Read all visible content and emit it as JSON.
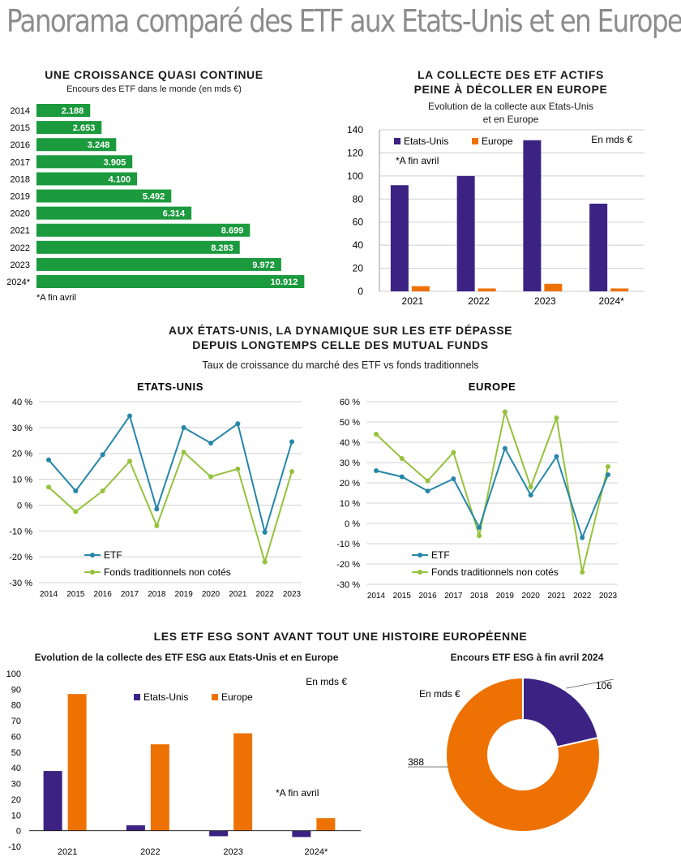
{
  "title": "Panorama comparé des ETF aux Etats-Unis et en Europe",
  "colors": {
    "green": "#1c9a3e",
    "purple": "#3b2283",
    "orange": "#ee7203",
    "teal": "#2586a8",
    "lime": "#96c23c",
    "grey": "#8c8c8c"
  },
  "panel1": {
    "title": "UNE CROISSANCE QUASI CONTINUE",
    "subtitle": "Encours des ETF dans le monde (en mds €)",
    "note": "*A fin avril"
  },
  "panel2": {
    "title_line1": "LA COLLECTE DES ETF ACTIFS",
    "title_line2": "PEINE À DÉCOLLER EN EUROPE",
    "subtitle_line1": "Evolution de la collecte aux Etats-Unis",
    "subtitle_line2": "et en Europe",
    "unit": "En mds €",
    "note": "*A fin avril"
  },
  "section3": {
    "title_line1": "AUX ÉTATS-UNIS, LA DYNAMIQUE SUR LES ETF DÉPASSE",
    "title_line2": "DEPUIS LONGTEMPS CELLE DES MUTUAL FUNDS",
    "subtitle": "Taux de croissance du marché des ETF vs fonds traditionnels"
  },
  "section4": {
    "title": "LES ETF ESG SONT AVANT TOUT UNE HISTOIRE EUROPÉENNE",
    "left_subtitle": "Evolution de la collecte des ETF ESG aux Etats-Unis et en Europe",
    "right_subtitle": "Encours ETF ESG à fin avril 2024",
    "unit": "En mds €",
    "note": "*A fin avril"
  },
  "chart_data": [
    {
      "type": "bar",
      "orientation": "horizontal",
      "categories": [
        "2014",
        "2015",
        "2016",
        "2017",
        "2018",
        "2019",
        "2020",
        "2021",
        "2022",
        "2023",
        "2024*"
      ],
      "values": [
        2188,
        2653,
        3248,
        3905,
        4100,
        5492,
        6314,
        8699,
        8283,
        9972,
        10912
      ],
      "labels": [
        "2.188",
        "2.653",
        "3.248",
        "3.905",
        "4.100",
        "5.492",
        "6.314",
        "8.699",
        "8.283",
        "9.972",
        "10.912"
      ],
      "xlim": [
        0,
        11000
      ],
      "color": "#1c9a3e"
    },
    {
      "type": "bar",
      "categories": [
        "2021",
        "2022",
        "2023",
        "2024*"
      ],
      "series": [
        {
          "name": "Etats-Unis",
          "values": [
            92,
            100,
            131,
            76
          ],
          "color": "#3b2283"
        },
        {
          "name": "Europe",
          "values": [
            4.5,
            2.5,
            6.5,
            2.5
          ],
          "color": "#ee7203"
        }
      ],
      "ylim": [
        0,
        140
      ],
      "yticks": [
        "0",
        "20",
        "40",
        "60",
        "80",
        "100",
        "120",
        "140"
      ],
      "legend": "top-left"
    },
    {
      "type": "line",
      "title": "ETATS-UNIS",
      "x": [
        "2014",
        "2015",
        "2016",
        "2017",
        "2018",
        "2019",
        "2020",
        "2021",
        "2022",
        "2023"
      ],
      "series": [
        {
          "name": "ETF",
          "values": [
            17.5,
            5.5,
            19.5,
            34.5,
            -1.5,
            30,
            24,
            31.5,
            -10.5,
            24.5
          ],
          "color": "#2586a8"
        },
        {
          "name": "Fonds traditionnels non cotés",
          "values": [
            7,
            -2.5,
            5.5,
            17,
            -8,
            20.5,
            11,
            14,
            -22,
            13
          ],
          "color": "#96c23c"
        }
      ],
      "ylim": [
        -30,
        40
      ],
      "yticks": [
        "-30 %",
        "-20 %",
        "-10 %",
        "0 %",
        "10 %",
        "20 %",
        "30 %",
        "40 %"
      ],
      "legend": "bottom-left"
    },
    {
      "type": "line",
      "title": "EUROPE",
      "x": [
        "2014",
        "2015",
        "2016",
        "2017",
        "2018",
        "2019",
        "2020",
        "2021",
        "2022",
        "2023"
      ],
      "series": [
        {
          "name": "ETF",
          "values": [
            26,
            23,
            16,
            22,
            -2,
            37,
            14,
            33,
            -7,
            24
          ],
          "color": "#2586a8"
        },
        {
          "name": "Fonds traditionnels non cotés",
          "values": [
            44,
            32,
            21,
            35,
            -6,
            55,
            18,
            52,
            -24,
            28
          ],
          "color": "#96c23c"
        }
      ],
      "ylim": [
        -30,
        60
      ],
      "yticks": [
        "-30 %",
        "-20 %",
        "-10 %",
        "0 %",
        "10 %",
        "20 %",
        "30 %",
        "40 %",
        "50 %",
        "60 %"
      ],
      "legend": "bottom-left"
    },
    {
      "type": "bar",
      "categories": [
        "2021",
        "2022",
        "2023",
        "2024*"
      ],
      "series": [
        {
          "name": "Etats-Unis",
          "values": [
            38,
            3.5,
            -3.5,
            -4
          ],
          "color": "#3b2283"
        },
        {
          "name": "Europe",
          "values": [
            87,
            55,
            62,
            8
          ],
          "color": "#ee7203"
        }
      ],
      "ylim": [
        -10,
        100
      ],
      "yticks": [
        "-10",
        "0",
        "10",
        "20",
        "30",
        "40",
        "50",
        "60",
        "70",
        "80",
        "90",
        "100"
      ],
      "legend": "top-center"
    },
    {
      "type": "pie",
      "style": "donut",
      "slices": [
        {
          "value": 106,
          "label": "106",
          "color": "#3b2283"
        },
        {
          "value": 388,
          "label": "388",
          "color": "#ee7203"
        }
      ]
    }
  ]
}
